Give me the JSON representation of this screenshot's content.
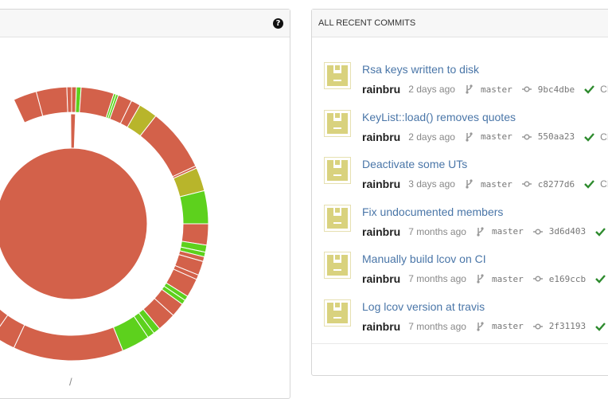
{
  "coverage_panel": {
    "help_icon": "question-circle-icon",
    "path_label": "/",
    "colors": {
      "low": "#d3614a",
      "medium": "#b8b52b",
      "high": "#5dd11d"
    }
  },
  "commits_panel": {
    "title": "ALL RECENT COMMITS",
    "commits": [
      {
        "message": "Rsa keys written to disk",
        "author": "rainbru",
        "date": "2 days ago",
        "branch": "master",
        "sha": "9bc4dbe",
        "ci": "CI",
        "status": "passed"
      },
      {
        "message": "KeyList::load() removes quotes",
        "author": "rainbru",
        "date": "2 days ago",
        "branch": "master",
        "sha": "550aa23",
        "ci": "CI",
        "status": "passed"
      },
      {
        "message": "Deactivate some UTs",
        "author": "rainbru",
        "date": "3 days ago",
        "branch": "master",
        "sha": "c8277d6",
        "ci": "CI",
        "status": "passed"
      },
      {
        "message": "Fix undocumented members",
        "author": "rainbru",
        "date": "7 months ago",
        "branch": "master",
        "sha": "3d6d403",
        "ci": "",
        "status": "passed"
      },
      {
        "message": "Manually build lcov on CI",
        "author": "rainbru",
        "date": "7 months ago",
        "branch": "master",
        "sha": "e169ccb",
        "ci": "",
        "status": "passed"
      },
      {
        "message": "Log lcov version at travis",
        "author": "rainbru",
        "date": "7 months ago",
        "branch": "master",
        "sha": "2f31193",
        "ci": "",
        "status": "passed"
      }
    ],
    "icons": {
      "branch": "code-branch-icon",
      "commit": "commit-icon",
      "status": "check-icon"
    },
    "colors": {
      "link": "#4a76a8",
      "check": "#2e8b2e",
      "avatar": "#d9d27e"
    }
  }
}
